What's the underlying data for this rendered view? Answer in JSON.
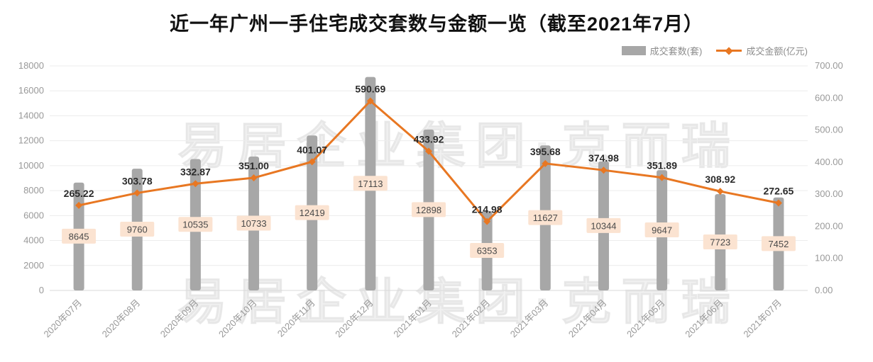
{
  "title": "近一年广州一手住宅成交套数与金额一览（截至2021年7月）",
  "legend": {
    "bars": {
      "label": "成交套数(套)"
    },
    "line": {
      "label": "成交金额(亿元)"
    }
  },
  "watermark": "易居企业集团·克而瑞",
  "colors": {
    "bar": "#a7a7a7",
    "line": "#e87722",
    "bar_label_bg": "#fbe3d1",
    "grid": "#ececec",
    "axis": "#d8d8d8",
    "tick_text": "#999999"
  },
  "chart_data": {
    "type": "bar",
    "subtype": "bar+line combo, dual y-axis",
    "title": "近一年广州一手住宅成交套数与金额一览（截至2021年7月）",
    "categories": [
      "2020年07月",
      "2020年08月",
      "2020年09月",
      "2020年10月",
      "2020年11月",
      "2020年12月",
      "2021年01月",
      "2021年02月",
      "2021年03月",
      "2021年04月",
      "2021年05月",
      "2021年06月",
      "2021年07月"
    ],
    "series": [
      {
        "name": "成交套数(套)",
        "type": "bar",
        "axis": "left",
        "color": "#a7a7a7",
        "values": [
          8645,
          9760,
          10535,
          10733,
          12419,
          17113,
          12898,
          6353,
          11627,
          10344,
          9647,
          7723,
          7452
        ]
      },
      {
        "name": "成交金额(亿元)",
        "type": "line",
        "axis": "right",
        "color": "#e87722",
        "values": [
          265.22,
          303.78,
          332.87,
          351.0,
          401.07,
          590.69,
          433.92,
          214.98,
          395.68,
          374.98,
          351.89,
          308.92,
          272.65
        ]
      }
    ],
    "left_axis": {
      "min": 0,
      "max": 18000,
      "step": 2000
    },
    "right_axis": {
      "min": 0,
      "max": 700,
      "step": 100,
      "decimals": 2
    },
    "grid": true,
    "legend_position": "top-right",
    "data_labels": "bar values shown in peach boxes centered on bars; line values shown above markers"
  }
}
